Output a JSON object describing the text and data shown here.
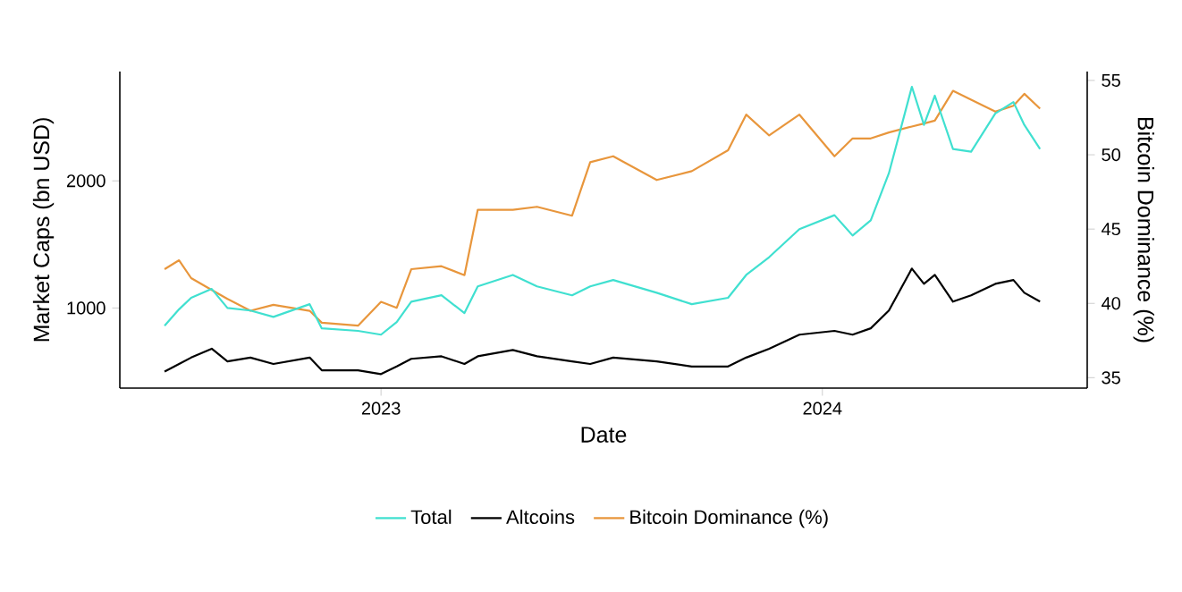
{
  "chart_data": {
    "type": "line",
    "xlabel": "Date",
    "ylabel": "Market Caps (bn USD)",
    "y2label": "Bitcoin Dominance (%)",
    "x": [
      "2022-07-06",
      "2022-07-18",
      "2022-07-28",
      "2022-08-14",
      "2022-08-27",
      "2022-09-15",
      "2022-10-04",
      "2022-11-03",
      "2022-11-13",
      "2022-12-13",
      "2023-01-01",
      "2023-01-14",
      "2023-01-26",
      "2023-02-20",
      "2023-03-11",
      "2023-03-22",
      "2023-04-20",
      "2023-05-10",
      "2023-06-08",
      "2023-06-23",
      "2023-07-12",
      "2023-08-17",
      "2023-09-15",
      "2023-10-15",
      "2023-10-30",
      "2023-11-18",
      "2023-12-13",
      "2024-01-11",
      "2024-01-26",
      "2024-02-10",
      "2024-02-25",
      "2024-03-15",
      "2024-03-25",
      "2024-04-03",
      "2024-04-18",
      "2024-05-03",
      "2024-05-23",
      "2024-06-07",
      "2024-06-16",
      "2024-06-29"
    ],
    "series": [
      {
        "name": "Total",
        "color": "#40e0d0",
        "values": [
          860,
          990,
          1080,
          1150,
          1000,
          980,
          930,
          1030,
          840,
          820,
          790,
          890,
          1050,
          1100,
          960,
          1170,
          1260,
          1170,
          1100,
          1170,
          1220,
          1120,
          1030,
          1080,
          1260,
          1400,
          1620,
          1730,
          1570,
          1690,
          2060,
          2740,
          2440,
          2670,
          2250,
          2230,
          2530,
          2620,
          2440,
          2250
        ]
      },
      {
        "name": "Altcoins",
        "color": "#000000",
        "values": [
          500,
          560,
          610,
          680,
          580,
          610,
          560,
          610,
          510,
          510,
          480,
          540,
          600,
          620,
          560,
          620,
          670,
          620,
          580,
          560,
          610,
          580,
          540,
          540,
          610,
          680,
          790,
          820,
          790,
          840,
          980,
          1310,
          1190,
          1260,
          1050,
          1100,
          1190,
          1220,
          1120,
          1050
        ]
      },
      {
        "name": "Bitcoin Dominance (%)",
        "color": "#e8963c",
        "axis": "y2",
        "values": [
          42.3,
          42.9,
          41.7,
          40.9,
          40.3,
          39.5,
          39.9,
          39.5,
          38.7,
          38.5,
          40.1,
          39.7,
          42.3,
          42.5,
          41.9,
          46.3,
          46.3,
          46.5,
          45.9,
          49.5,
          49.9,
          48.3,
          48.9,
          50.3,
          52.7,
          51.3,
          52.7,
          49.9,
          51.1,
          51.1,
          51.5,
          51.9,
          52.1,
          52.3,
          54.3,
          53.7,
          52.9,
          53.3,
          54.1,
          53.1
        ]
      }
    ],
    "xlim": [
      "2022-05-30",
      "2024-08-07"
    ],
    "xticks": [
      {
        "value": "2023-01-01",
        "label": "2023"
      },
      {
        "value": "2024-01-01",
        "label": "2024"
      }
    ],
    "ylim": [
      370,
      2860
    ],
    "yticks": [
      1000,
      2000
    ],
    "y2lim": [
      34.3,
      55.6
    ],
    "y2ticks": [
      35,
      40,
      45,
      50,
      55
    ],
    "legend": "bottom"
  }
}
